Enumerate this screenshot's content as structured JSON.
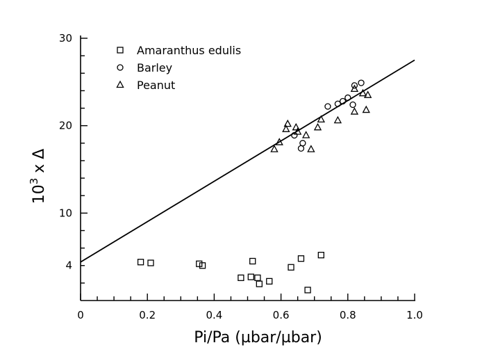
{
  "chart_data": {
    "type": "scatter",
    "title": "",
    "xlabel": "Pi/Pa (µbar/µbar)",
    "ylabel": "10³ x Δ",
    "ylabel_base": "10",
    "ylabel_exp": "3",
    "ylabel_rest": " x Δ",
    "xlim": [
      0,
      1.0
    ],
    "ylim": [
      0,
      30
    ],
    "x_ticks": [
      0,
      0.2,
      0.4,
      0.6,
      0.8,
      1.0
    ],
    "x_tick_labels": [
      "0",
      "0.2",
      "0.4",
      "0.6",
      "0.8",
      "1.0"
    ],
    "y_ticks": [
      4,
      10,
      20,
      30
    ],
    "y_tick_labels": [
      "4",
      "10",
      "20",
      "30"
    ],
    "grid": false,
    "legend_position": "top-left",
    "series": [
      {
        "name": "Amaranthus edulis",
        "marker": "square",
        "points": [
          [
            0.18,
            4.4
          ],
          [
            0.21,
            4.3
          ],
          [
            0.355,
            4.2
          ],
          [
            0.365,
            4.0
          ],
          [
            0.48,
            2.6
          ],
          [
            0.51,
            2.7
          ],
          [
            0.515,
            4.5
          ],
          [
            0.53,
            2.6
          ],
          [
            0.535,
            1.9
          ],
          [
            0.565,
            2.2
          ],
          [
            0.63,
            3.8
          ],
          [
            0.66,
            4.8
          ],
          [
            0.68,
            1.2
          ],
          [
            0.72,
            5.2
          ]
        ]
      },
      {
        "name": "Barley",
        "marker": "circle",
        "points": [
          [
            0.64,
            18.9
          ],
          [
            0.66,
            17.4
          ],
          [
            0.665,
            18.0
          ],
          [
            0.74,
            22.2
          ],
          [
            0.77,
            22.5
          ],
          [
            0.785,
            22.8
          ],
          [
            0.8,
            23.2
          ],
          [
            0.815,
            22.4
          ],
          [
            0.82,
            24.6
          ],
          [
            0.84,
            24.9
          ]
        ]
      },
      {
        "name": "Peanut",
        "marker": "triangle",
        "points": [
          [
            0.58,
            17.3
          ],
          [
            0.595,
            18.1
          ],
          [
            0.615,
            19.6
          ],
          [
            0.62,
            20.2
          ],
          [
            0.645,
            19.8
          ],
          [
            0.65,
            19.3
          ],
          [
            0.675,
            18.9
          ],
          [
            0.69,
            17.3
          ],
          [
            0.71,
            19.8
          ],
          [
            0.72,
            20.7
          ],
          [
            0.77,
            20.6
          ],
          [
            0.82,
            24.2
          ],
          [
            0.82,
            21.6
          ],
          [
            0.845,
            23.7
          ],
          [
            0.855,
            21.8
          ],
          [
            0.86,
            23.5
          ]
        ]
      }
    ],
    "fit_line": {
      "intercept": 4.4,
      "slope": 23.1,
      "x_range": [
        0,
        1.0
      ]
    }
  }
}
